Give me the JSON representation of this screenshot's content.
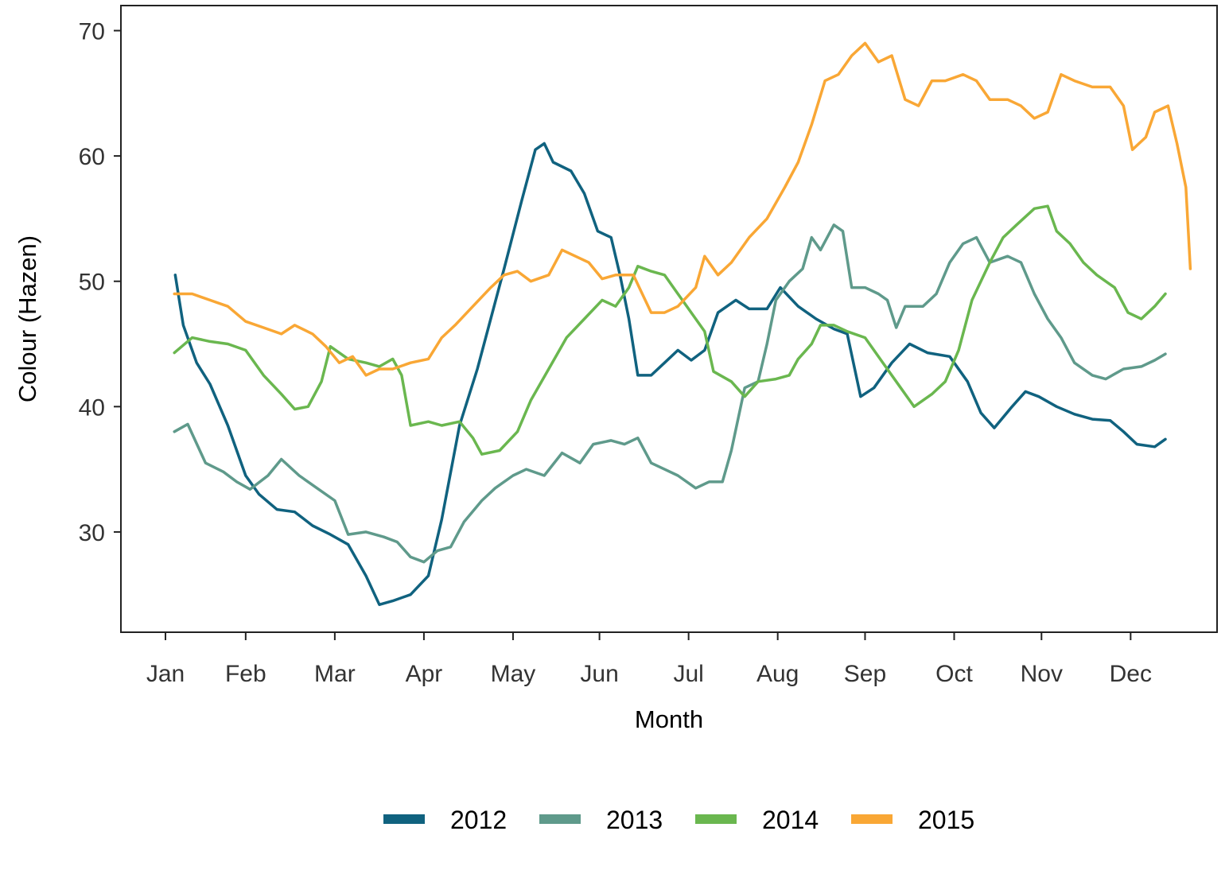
{
  "chart_data": {
    "type": "line",
    "xlabel": "Month",
    "ylabel": "Colour (Hazen)",
    "xlim": [
      0,
      12.3
    ],
    "ylim": [
      22,
      72
    ],
    "x_ticks": [
      {
        "label": "Jan",
        "x": 0.5
      },
      {
        "label": "Feb",
        "x": 1.4
      },
      {
        "label": "Mar",
        "x": 2.4
      },
      {
        "label": "Apr",
        "x": 3.4
      },
      {
        "label": "May",
        "x": 4.4
      },
      {
        "label": "Jun",
        "x": 5.37
      },
      {
        "label": "Jul",
        "x": 6.37
      },
      {
        "label": "Aug",
        "x": 7.37
      },
      {
        "label": "Sep",
        "x": 8.35
      },
      {
        "label": "Oct",
        "x": 9.35
      },
      {
        "label": "Nov",
        "x": 10.33
      },
      {
        "label": "Dec",
        "x": 11.33
      }
    ],
    "y_ticks": [
      30,
      40,
      50,
      60,
      70
    ],
    "grid": false,
    "legend_position": "bottom",
    "series": [
      {
        "name": "2012",
        "color": "#10627f",
        "points": [
          [
            0.61,
            50.5
          ],
          [
            0.7,
            46.5
          ],
          [
            0.85,
            43.5
          ],
          [
            1.0,
            41.8
          ],
          [
            1.2,
            38.5
          ],
          [
            1.4,
            34.5
          ],
          [
            1.55,
            33.0
          ],
          [
            1.75,
            31.8
          ],
          [
            1.95,
            31.6
          ],
          [
            2.15,
            30.5
          ],
          [
            2.35,
            29.8
          ],
          [
            2.55,
            29.0
          ],
          [
            2.75,
            26.5
          ],
          [
            2.9,
            24.2
          ],
          [
            3.05,
            24.5
          ],
          [
            3.25,
            25.0
          ],
          [
            3.45,
            26.5
          ],
          [
            3.6,
            31.0
          ],
          [
            3.8,
            38.5
          ],
          [
            4.0,
            43.0
          ],
          [
            4.15,
            47.0
          ],
          [
            4.3,
            51.0
          ],
          [
            4.5,
            56.5
          ],
          [
            4.65,
            60.5
          ],
          [
            4.75,
            61.0
          ],
          [
            4.85,
            59.5
          ],
          [
            5.05,
            58.8
          ],
          [
            5.2,
            57.0
          ],
          [
            5.35,
            54.0
          ],
          [
            5.5,
            53.5
          ],
          [
            5.6,
            50.5
          ],
          [
            5.7,
            47.0
          ],
          [
            5.8,
            42.5
          ],
          [
            5.95,
            42.5
          ],
          [
            6.1,
            43.5
          ],
          [
            6.25,
            44.5
          ],
          [
            6.4,
            43.7
          ],
          [
            6.55,
            44.5
          ],
          [
            6.7,
            47.5
          ],
          [
            6.9,
            48.5
          ],
          [
            7.05,
            47.8
          ],
          [
            7.25,
            47.8
          ],
          [
            7.4,
            49.5
          ],
          [
            7.6,
            48.0
          ],
          [
            7.8,
            47.0
          ],
          [
            8.0,
            46.2
          ],
          [
            8.15,
            45.8
          ],
          [
            8.3,
            40.8
          ],
          [
            8.45,
            41.5
          ],
          [
            8.65,
            43.5
          ],
          [
            8.85,
            45.0
          ],
          [
            9.05,
            44.3
          ],
          [
            9.3,
            44.0
          ],
          [
            9.5,
            42.0
          ],
          [
            9.65,
            39.5
          ],
          [
            9.8,
            38.3
          ],
          [
            10.0,
            40.0
          ],
          [
            10.15,
            41.2
          ],
          [
            10.3,
            40.8
          ],
          [
            10.5,
            40.0
          ],
          [
            10.7,
            39.4
          ],
          [
            10.9,
            39.0
          ],
          [
            11.1,
            38.9
          ],
          [
            11.25,
            38.0
          ],
          [
            11.4,
            37.0
          ],
          [
            11.6,
            36.8
          ],
          [
            11.72,
            37.4
          ]
        ]
      },
      {
        "name": "2013",
        "color": "#5f9a8b",
        "points": [
          [
            0.6,
            38.0
          ],
          [
            0.75,
            38.6
          ],
          [
            0.95,
            35.5
          ],
          [
            1.15,
            34.8
          ],
          [
            1.3,
            34.0
          ],
          [
            1.45,
            33.4
          ],
          [
            1.65,
            34.5
          ],
          [
            1.8,
            35.8
          ],
          [
            2.0,
            34.5
          ],
          [
            2.2,
            33.5
          ],
          [
            2.4,
            32.5
          ],
          [
            2.55,
            29.8
          ],
          [
            2.75,
            30.0
          ],
          [
            2.95,
            29.6
          ],
          [
            3.1,
            29.2
          ],
          [
            3.25,
            28.0
          ],
          [
            3.4,
            27.6
          ],
          [
            3.55,
            28.5
          ],
          [
            3.7,
            28.8
          ],
          [
            3.85,
            30.8
          ],
          [
            4.05,
            32.5
          ],
          [
            4.2,
            33.5
          ],
          [
            4.4,
            34.5
          ],
          [
            4.55,
            35.0
          ],
          [
            4.75,
            34.5
          ],
          [
            4.95,
            36.3
          ],
          [
            5.15,
            35.5
          ],
          [
            5.3,
            37.0
          ],
          [
            5.5,
            37.3
          ],
          [
            5.65,
            37.0
          ],
          [
            5.8,
            37.5
          ],
          [
            5.95,
            35.5
          ],
          [
            6.1,
            35.0
          ],
          [
            6.25,
            34.5
          ],
          [
            6.45,
            33.5
          ],
          [
            6.6,
            34.0
          ],
          [
            6.75,
            34.0
          ],
          [
            6.85,
            36.5
          ],
          [
            7.0,
            41.5
          ],
          [
            7.15,
            42.0
          ],
          [
            7.25,
            45.0
          ],
          [
            7.35,
            48.5
          ],
          [
            7.5,
            50.0
          ],
          [
            7.65,
            51.0
          ],
          [
            7.75,
            53.5
          ],
          [
            7.85,
            52.5
          ],
          [
            8.0,
            54.5
          ],
          [
            8.1,
            54.0
          ],
          [
            8.2,
            49.5
          ],
          [
            8.35,
            49.5
          ],
          [
            8.5,
            49.0
          ],
          [
            8.6,
            48.5
          ],
          [
            8.7,
            46.3
          ],
          [
            8.8,
            48.0
          ],
          [
            9.0,
            48.0
          ],
          [
            9.15,
            49.0
          ],
          [
            9.3,
            51.5
          ],
          [
            9.45,
            53.0
          ],
          [
            9.6,
            53.5
          ],
          [
            9.75,
            51.5
          ],
          [
            9.95,
            52.0
          ],
          [
            10.1,
            51.5
          ],
          [
            10.25,
            49.0
          ],
          [
            10.4,
            47.0
          ],
          [
            10.55,
            45.5
          ],
          [
            10.7,
            43.5
          ],
          [
            10.9,
            42.5
          ],
          [
            11.05,
            42.2
          ],
          [
            11.25,
            43.0
          ],
          [
            11.45,
            43.2
          ],
          [
            11.6,
            43.7
          ],
          [
            11.72,
            44.2
          ]
        ]
      },
      {
        "name": "2014",
        "color": "#6ab74f",
        "points": [
          [
            0.6,
            44.3
          ],
          [
            0.8,
            45.5
          ],
          [
            1.0,
            45.2
          ],
          [
            1.2,
            45.0
          ],
          [
            1.4,
            44.5
          ],
          [
            1.6,
            42.5
          ],
          [
            1.8,
            41.0
          ],
          [
            1.95,
            39.8
          ],
          [
            2.1,
            40.0
          ],
          [
            2.25,
            42.0
          ],
          [
            2.35,
            44.8
          ],
          [
            2.55,
            43.8
          ],
          [
            2.75,
            43.5
          ],
          [
            2.9,
            43.2
          ],
          [
            3.05,
            43.8
          ],
          [
            3.15,
            42.5
          ],
          [
            3.25,
            38.5
          ],
          [
            3.45,
            38.8
          ],
          [
            3.6,
            38.5
          ],
          [
            3.8,
            38.8
          ],
          [
            3.95,
            37.5
          ],
          [
            4.05,
            36.2
          ],
          [
            4.25,
            36.5
          ],
          [
            4.45,
            38.0
          ],
          [
            4.6,
            40.5
          ],
          [
            4.8,
            43.0
          ],
          [
            5.0,
            45.5
          ],
          [
            5.2,
            47.0
          ],
          [
            5.4,
            48.5
          ],
          [
            5.55,
            48.0
          ],
          [
            5.7,
            49.5
          ],
          [
            5.8,
            51.2
          ],
          [
            5.95,
            50.8
          ],
          [
            6.1,
            50.5
          ],
          [
            6.25,
            49.0
          ],
          [
            6.4,
            47.5
          ],
          [
            6.55,
            46.0
          ],
          [
            6.65,
            42.8
          ],
          [
            6.85,
            42.0
          ],
          [
            7.0,
            40.8
          ],
          [
            7.15,
            42.0
          ],
          [
            7.35,
            42.2
          ],
          [
            7.5,
            42.5
          ],
          [
            7.6,
            43.8
          ],
          [
            7.75,
            45.0
          ],
          [
            7.85,
            46.5
          ],
          [
            8.0,
            46.5
          ],
          [
            8.15,
            46.0
          ],
          [
            8.35,
            45.5
          ],
          [
            8.55,
            43.5
          ],
          [
            8.75,
            41.5
          ],
          [
            8.9,
            40.0
          ],
          [
            9.1,
            41.0
          ],
          [
            9.25,
            42.0
          ],
          [
            9.4,
            44.5
          ],
          [
            9.55,
            48.5
          ],
          [
            9.75,
            51.5
          ],
          [
            9.9,
            53.5
          ],
          [
            10.05,
            54.5
          ],
          [
            10.25,
            55.8
          ],
          [
            10.4,
            56.0
          ],
          [
            10.5,
            54.0
          ],
          [
            10.65,
            53.0
          ],
          [
            10.8,
            51.5
          ],
          [
            10.95,
            50.5
          ],
          [
            11.15,
            49.5
          ],
          [
            11.3,
            47.5
          ],
          [
            11.45,
            47.0
          ],
          [
            11.6,
            48.0
          ],
          [
            11.72,
            49.0
          ]
        ]
      },
      {
        "name": "2015",
        "color": "#f9a735",
        "points": [
          [
            0.6,
            49.0
          ],
          [
            0.8,
            49.0
          ],
          [
            1.0,
            48.5
          ],
          [
            1.2,
            48.0
          ],
          [
            1.4,
            46.8
          ],
          [
            1.6,
            46.3
          ],
          [
            1.8,
            45.8
          ],
          [
            1.95,
            46.5
          ],
          [
            2.15,
            45.8
          ],
          [
            2.3,
            44.8
          ],
          [
            2.45,
            43.5
          ],
          [
            2.6,
            44.0
          ],
          [
            2.75,
            42.5
          ],
          [
            2.9,
            43.0
          ],
          [
            3.05,
            43.0
          ],
          [
            3.25,
            43.5
          ],
          [
            3.45,
            43.8
          ],
          [
            3.6,
            45.5
          ],
          [
            3.75,
            46.5
          ],
          [
            3.95,
            48.0
          ],
          [
            4.15,
            49.5
          ],
          [
            4.3,
            50.5
          ],
          [
            4.45,
            50.8
          ],
          [
            4.6,
            50.0
          ],
          [
            4.8,
            50.5
          ],
          [
            4.95,
            52.5
          ],
          [
            5.1,
            52.0
          ],
          [
            5.25,
            51.5
          ],
          [
            5.4,
            50.2
          ],
          [
            5.55,
            50.5
          ],
          [
            5.75,
            50.5
          ],
          [
            5.85,
            49.0
          ],
          [
            5.95,
            47.5
          ],
          [
            6.1,
            47.5
          ],
          [
            6.25,
            48.0
          ],
          [
            6.45,
            49.5
          ],
          [
            6.55,
            52.0
          ],
          [
            6.7,
            50.5
          ],
          [
            6.85,
            51.5
          ],
          [
            7.05,
            53.5
          ],
          [
            7.25,
            55.0
          ],
          [
            7.45,
            57.5
          ],
          [
            7.6,
            59.5
          ],
          [
            7.75,
            62.5
          ],
          [
            7.9,
            66.0
          ],
          [
            8.05,
            66.5
          ],
          [
            8.2,
            68.0
          ],
          [
            8.35,
            69.0
          ],
          [
            8.5,
            67.5
          ],
          [
            8.65,
            68.0
          ],
          [
            8.8,
            64.5
          ],
          [
            8.95,
            64.0
          ],
          [
            9.1,
            66.0
          ],
          [
            9.25,
            66.0
          ],
          [
            9.45,
            66.5
          ],
          [
            9.6,
            66.0
          ],
          [
            9.75,
            64.5
          ],
          [
            9.95,
            64.5
          ],
          [
            10.1,
            64.0
          ],
          [
            10.25,
            63.0
          ],
          [
            10.4,
            63.5
          ],
          [
            10.55,
            66.5
          ],
          [
            10.7,
            66.0
          ],
          [
            10.9,
            65.5
          ],
          [
            11.1,
            65.5
          ],
          [
            11.25,
            64.0
          ],
          [
            11.35,
            60.5
          ],
          [
            11.5,
            61.5
          ],
          [
            11.6,
            63.5
          ],
          [
            11.75,
            64.0
          ],
          [
            11.85,
            61.0
          ],
          [
            11.95,
            57.5
          ],
          [
            12.0,
            51.0
          ]
        ]
      }
    ]
  }
}
